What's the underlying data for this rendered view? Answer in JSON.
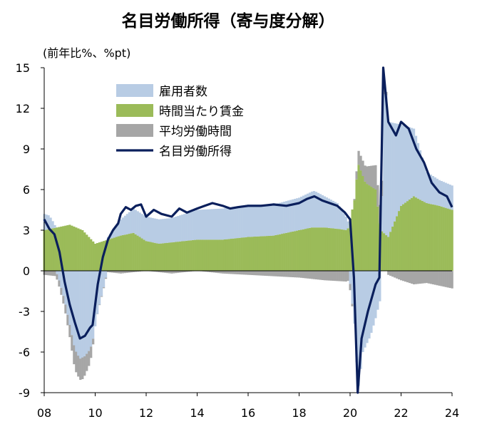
{
  "chart_data": {
    "type": "bar+line",
    "title": "名目労働所得（寄与度分解）",
    "ylabel": "(前年比%、%pt)",
    "xlabel": "",
    "ylim": [
      -9,
      15
    ],
    "yticks": [
      -9,
      -6,
      -3,
      0,
      3,
      6,
      9,
      12,
      15
    ],
    "xlim": [
      2008,
      2024
    ],
    "xticks": [
      2008,
      2010,
      2012,
      2014,
      2016,
      2018,
      2020,
      2022,
      2024
    ],
    "xtick_labels": [
      "08",
      "10",
      "12",
      "14",
      "16",
      "18",
      "20",
      "22",
      "24"
    ],
    "legend_position": "top-left",
    "series": [
      {
        "name": "雇用者数",
        "kind": "stacked-bar",
        "color": "#b8cce4",
        "points": [
          [
            2008.0,
            1.2
          ],
          [
            2008.2,
            1.0
          ],
          [
            2008.4,
            0.3
          ],
          [
            2008.6,
            -0.8
          ],
          [
            2008.8,
            -2.2
          ],
          [
            2009.0,
            -4.0
          ],
          [
            2009.2,
            -5.8
          ],
          [
            2009.4,
            -6.5
          ],
          [
            2009.6,
            -6.3
          ],
          [
            2009.8,
            -5.8
          ],
          [
            2009.9,
            -5.2
          ],
          [
            2010.1,
            -3.0
          ],
          [
            2010.3,
            -1.5
          ],
          [
            2010.5,
            0.2
          ],
          [
            2010.8,
            0.8
          ],
          [
            2011.0,
            1.2
          ],
          [
            2011.5,
            1.8
          ],
          [
            2012.0,
            1.8
          ],
          [
            2013.0,
            1.8
          ],
          [
            2014.0,
            2.2
          ],
          [
            2015.0,
            2.3
          ],
          [
            2016.0,
            2.4
          ],
          [
            2017.0,
            2.3
          ],
          [
            2018.0,
            2.4
          ],
          [
            2018.6,
            2.7
          ],
          [
            2019.0,
            2.3
          ],
          [
            2019.5,
            1.9
          ],
          [
            2019.9,
            0.8
          ],
          [
            2020.2,
            -4.5
          ],
          [
            2020.3,
            -9.0
          ],
          [
            2020.5,
            -6.0
          ],
          [
            2020.8,
            -4.8
          ],
          [
            2021.0,
            -3.5
          ],
          [
            2021.2,
            -2.0
          ],
          [
            2021.35,
            11.8
          ],
          [
            2021.5,
            8.5
          ],
          [
            2022.0,
            6.0
          ],
          [
            2022.5,
            5.0
          ],
          [
            2023.0,
            2.3
          ],
          [
            2023.5,
            1.9
          ],
          [
            2024.0,
            1.8
          ]
        ]
      },
      {
        "name": "時間当たり賃金",
        "kind": "stacked-bar",
        "color": "#9bbb59",
        "points": [
          [
            2008.0,
            3.0
          ],
          [
            2008.5,
            3.2
          ],
          [
            2009.0,
            3.4
          ],
          [
            2009.5,
            3.0
          ],
          [
            2010.0,
            2.0
          ],
          [
            2010.5,
            2.3
          ],
          [
            2011.0,
            2.6
          ],
          [
            2011.5,
            2.8
          ],
          [
            2012.0,
            2.2
          ],
          [
            2012.5,
            2.0
          ],
          [
            2013.0,
            2.1
          ],
          [
            2014.0,
            2.3
          ],
          [
            2015.0,
            2.3
          ],
          [
            2016.0,
            2.5
          ],
          [
            2017.0,
            2.6
          ],
          [
            2018.0,
            3.0
          ],
          [
            2018.5,
            3.2
          ],
          [
            2019.0,
            3.2
          ],
          [
            2019.5,
            3.1
          ],
          [
            2019.9,
            3.0
          ],
          [
            2020.2,
            5.5
          ],
          [
            2020.3,
            8.0
          ],
          [
            2020.6,
            6.5
          ],
          [
            2021.0,
            6.0
          ],
          [
            2021.2,
            3.0
          ],
          [
            2021.5,
            2.5
          ],
          [
            2022.0,
            4.8
          ],
          [
            2022.5,
            5.5
          ],
          [
            2023.0,
            5.0
          ],
          [
            2023.5,
            4.8
          ],
          [
            2024.0,
            4.5
          ]
        ]
      },
      {
        "name": "平均労働時間",
        "kind": "stacked-bar",
        "color": "#a6a6a6",
        "points": [
          [
            2008.0,
            -0.3
          ],
          [
            2008.5,
            -0.4
          ],
          [
            2008.8,
            -0.6
          ],
          [
            2009.0,
            -0.9
          ],
          [
            2009.2,
            -1.5
          ],
          [
            2009.5,
            -1.6
          ],
          [
            2009.8,
            -1.0
          ],
          [
            2010.0,
            0.0
          ],
          [
            2011.0,
            -0.2
          ],
          [
            2012.0,
            0.0
          ],
          [
            2013.0,
            -0.2
          ],
          [
            2014.0,
            0.0
          ],
          [
            2015.0,
            -0.2
          ],
          [
            2016.0,
            -0.3
          ],
          [
            2017.0,
            -0.4
          ],
          [
            2018.0,
            -0.5
          ],
          [
            2019.0,
            -0.7
          ],
          [
            2019.9,
            -0.8
          ],
          [
            2020.2,
            0.2
          ],
          [
            2020.3,
            1.0
          ],
          [
            2020.6,
            1.2
          ],
          [
            2021.0,
            1.8
          ],
          [
            2021.3,
            1.0
          ],
          [
            2021.5,
            -0.3
          ],
          [
            2022.0,
            -0.7
          ],
          [
            2022.5,
            -1.0
          ],
          [
            2023.0,
            -0.9
          ],
          [
            2023.5,
            -1.1
          ],
          [
            2024.0,
            -1.3
          ]
        ]
      },
      {
        "name": "名目労働所得",
        "kind": "line",
        "color": "#0a1f5c",
        "points": [
          [
            2008.0,
            3.8
          ],
          [
            2008.2,
            3.1
          ],
          [
            2008.4,
            2.7
          ],
          [
            2008.6,
            1.4
          ],
          [
            2008.8,
            -0.8
          ],
          [
            2009.0,
            -2.5
          ],
          [
            2009.2,
            -3.8
          ],
          [
            2009.4,
            -5.0
          ],
          [
            2009.6,
            -4.8
          ],
          [
            2009.8,
            -4.2
          ],
          [
            2009.9,
            -4.0
          ],
          [
            2010.1,
            -1.0
          ],
          [
            2010.3,
            1.0
          ],
          [
            2010.5,
            2.3
          ],
          [
            2010.7,
            3.0
          ],
          [
            2010.9,
            3.5
          ],
          [
            2011.0,
            4.2
          ],
          [
            2011.2,
            4.7
          ],
          [
            2011.4,
            4.5
          ],
          [
            2011.6,
            4.8
          ],
          [
            2011.8,
            4.9
          ],
          [
            2012.0,
            4.0
          ],
          [
            2012.3,
            4.5
          ],
          [
            2012.6,
            4.2
          ],
          [
            2013.0,
            4.0
          ],
          [
            2013.3,
            4.6
          ],
          [
            2013.6,
            4.3
          ],
          [
            2014.0,
            4.6
          ],
          [
            2014.3,
            4.8
          ],
          [
            2014.6,
            5.0
          ],
          [
            2015.0,
            4.8
          ],
          [
            2015.3,
            4.6
          ],
          [
            2015.6,
            4.7
          ],
          [
            2016.0,
            4.8
          ],
          [
            2016.5,
            4.8
          ],
          [
            2017.0,
            4.9
          ],
          [
            2017.5,
            4.8
          ],
          [
            2018.0,
            5.0
          ],
          [
            2018.3,
            5.3
          ],
          [
            2018.6,
            5.5
          ],
          [
            2018.9,
            5.2
          ],
          [
            2019.2,
            5.0
          ],
          [
            2019.5,
            4.8
          ],
          [
            2019.8,
            4.3
          ],
          [
            2020.0,
            3.8
          ],
          [
            2020.15,
            -0.5
          ],
          [
            2020.3,
            -9.0
          ],
          [
            2020.45,
            -5.0
          ],
          [
            2020.7,
            -3.0
          ],
          [
            2021.0,
            -1.0
          ],
          [
            2021.15,
            -0.5
          ],
          [
            2021.3,
            15.0
          ],
          [
            2021.5,
            11.0
          ],
          [
            2021.8,
            10.0
          ],
          [
            2022.0,
            11.0
          ],
          [
            2022.3,
            10.5
          ],
          [
            2022.6,
            9.0
          ],
          [
            2022.9,
            8.0
          ],
          [
            2023.2,
            6.5
          ],
          [
            2023.5,
            5.8
          ],
          [
            2023.8,
            5.5
          ],
          [
            2024.0,
            4.7
          ]
        ]
      }
    ]
  }
}
